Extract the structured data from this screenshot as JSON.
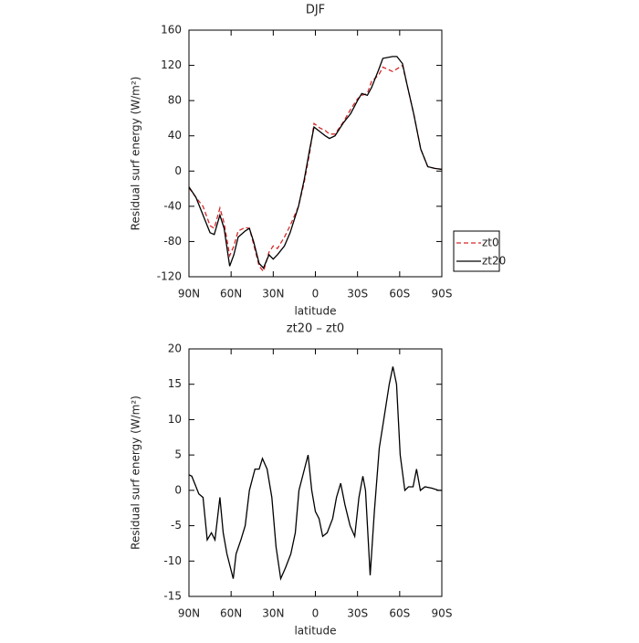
{
  "chart_data": [
    {
      "type": "line",
      "title": "DJF",
      "xlabel": "latitude",
      "ylabel": "Residual surf energy (W/m²)",
      "x": [
        90,
        85,
        80,
        75,
        72,
        68,
        65,
        61,
        58,
        55,
        50,
        47,
        44,
        40,
        37,
        33,
        30,
        27,
        22,
        18,
        12,
        8,
        4,
        1,
        -3,
        -7,
        -10,
        -14,
        -20,
        -25,
        -30,
        -33,
        -37,
        -40,
        -45,
        -48,
        -55,
        -58,
        -62,
        -65,
        -70,
        -75,
        -80,
        -85,
        -90
      ],
      "xlim": [
        90,
        -90
      ],
      "xticks": [
        {
          "value": 90,
          "label": "90N"
        },
        {
          "value": 60,
          "label": "60N"
        },
        {
          "value": 30,
          "label": "30N"
        },
        0,
        {
          "value": -30,
          "label": "30S"
        },
        {
          "value": -60,
          "label": "60S"
        },
        {
          "value": -90,
          "label": "90S"
        }
      ],
      "ylim": [
        -120,
        160
      ],
      "yticks": [
        -120,
        -80,
        -40,
        0,
        40,
        80,
        120,
        160
      ],
      "legend": "outside-right",
      "series": [
        {
          "name": "zt0",
          "color": "#d62728",
          "linestyle": "dashed",
          "values": [
            -19,
            -30,
            -40,
            -62,
            -65,
            -42,
            -59,
            -96,
            -85,
            -68,
            -64,
            -65,
            -83,
            -108,
            -114,
            -92,
            -85,
            -88,
            -75,
            -62,
            -40,
            -13,
            21,
            54,
            49,
            46,
            42,
            42,
            56,
            70,
            82,
            86,
            88,
            102,
            109,
            118,
            113,
            116,
            120,
            100,
            65,
            25,
            5,
            3,
            2
          ]
        },
        {
          "name": "zt20",
          "color": "#000000",
          "linestyle": "solid",
          "values": [
            -18,
            -30,
            -50,
            -70,
            -72,
            -50,
            -65,
            -108,
            -95,
            -75,
            -68,
            -65,
            -80,
            -105,
            -110,
            -95,
            -100,
            -95,
            -85,
            -70,
            -40,
            -10,
            25,
            50,
            45,
            40,
            37,
            40,
            55,
            65,
            80,
            88,
            86,
            95,
            115,
            128,
            130,
            130,
            122,
            100,
            65,
            25,
            5,
            3,
            2
          ]
        }
      ]
    },
    {
      "type": "line",
      "title": "zt20 – zt0",
      "xlabel": "latitude",
      "ylabel": "Residual surf energy (W/m²)",
      "x": [
        90,
        88,
        86,
        83,
        80,
        77,
        74,
        71.5,
        68,
        65.6,
        63,
        58.5,
        56.5,
        53,
        50,
        47,
        43,
        40,
        37.7,
        34.4,
        31,
        28,
        24.7,
        21.4,
        17.5,
        14.3,
        11.7,
        7.8,
        5.2,
        2.6,
        0,
        -2.6,
        -5.2,
        -8.4,
        -12.3,
        -15,
        -18,
        -21,
        -24.7,
        -28,
        -31,
        -33.8,
        -35.7,
        -39,
        -42,
        -45.5,
        -48.7,
        -52.6,
        -55.2,
        -57.8,
        -60.4,
        -63.7,
        -66.3,
        -69.5,
        -72,
        -74.7,
        -78,
        -83,
        -87.7,
        -90
      ],
      "xlim": [
        90,
        -90
      ],
      "xticks": [
        {
          "value": 90,
          "label": "90N"
        },
        {
          "value": 60,
          "label": "60N"
        },
        {
          "value": 30,
          "label": "30N"
        },
        0,
        {
          "value": -30,
          "label": "30S"
        },
        {
          "value": -60,
          "label": "60S"
        },
        {
          "value": -90,
          "label": "90S"
        }
      ],
      "ylim": [
        -15,
        20
      ],
      "yticks": [
        -15,
        -10,
        -5,
        0,
        5,
        10,
        15,
        20
      ],
      "color": "#000000",
      "values": [
        2.2,
        2,
        1,
        -0.5,
        -1,
        -7,
        -6,
        -7,
        -1,
        -6,
        -9,
        -12.5,
        -9,
        -7,
        -5,
        0,
        3,
        3,
        4.5,
        3,
        -1,
        -8,
        -12.5,
        -11,
        -9,
        -6,
        0,
        3,
        5,
        0,
        -3,
        -4,
        -6.5,
        -6,
        -4,
        -1,
        1,
        -2,
        -5,
        -6.5,
        -1,
        2,
        0,
        -12,
        -3,
        6,
        10,
        15,
        17.5,
        15,
        5,
        0,
        0.5,
        0.5,
        3,
        0,
        0.5,
        0.3,
        0,
        0
      ]
    }
  ]
}
